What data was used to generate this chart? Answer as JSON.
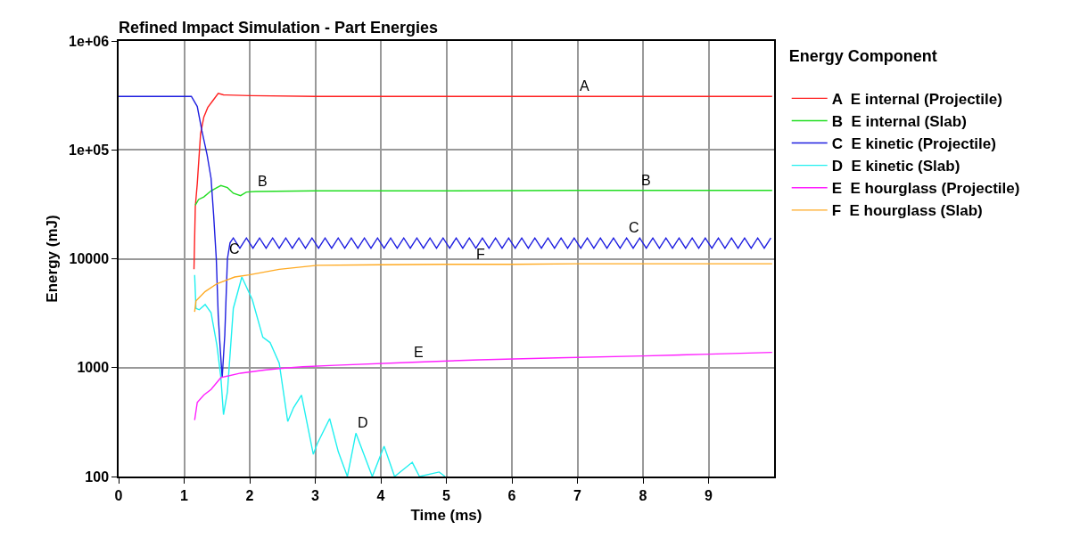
{
  "chart_data": {
    "type": "line",
    "title": "Refined Impact Simulation - Part Energies",
    "xlabel": "Time (ms)",
    "ylabel": "Energy (mJ)",
    "legend_title": "Energy Component",
    "xlim": [
      0,
      10
    ],
    "xticks": [
      0,
      1,
      2,
      3,
      4,
      5,
      6,
      7,
      8,
      9
    ],
    "ylim": [
      100,
      1000000
    ],
    "yticks": [
      100,
      1000,
      10000,
      {
        "value": 100000,
        "label": "1e+05"
      },
      {
        "value": 1000000,
        "label": "1e+06"
      }
    ],
    "log": "y",
    "grid": true,
    "legend": "right",
    "marker": "none",
    "line_style": "solid",
    "series": [
      {
        "name": "A  E internal (Projectile)",
        "color": "#ff2020",
        "x": [
          1.15,
          1.17,
          1.2,
          1.25,
          1.3,
          1.36,
          1.45,
          1.52,
          1.6,
          2,
          3,
          4,
          5,
          6,
          7,
          8,
          9,
          9.97
        ],
        "values": [
          8000,
          30000,
          49000,
          140000,
          200000,
          245000,
          290000,
          330000,
          320000,
          315000,
          310000,
          310000,
          310000,
          310000,
          310000,
          310000,
          310000,
          310000
        ]
      },
      {
        "name": "B  E internal (Slab)",
        "color": "#22dd22",
        "x": [
          1.17,
          1.22,
          1.3,
          1.41,
          1.5,
          1.56,
          1.66,
          1.75,
          1.86,
          1.95,
          2.09,
          3,
          5,
          7,
          9.97
        ],
        "values": [
          31000,
          35000,
          37000,
          42000,
          45000,
          47000,
          45000,
          40000,
          38000,
          41000,
          41500,
          42000,
          42000,
          42500,
          42500
        ]
      },
      {
        "name": "C  E kinetic (Projectile)",
        "color": "#1f1fe0",
        "x": [
          0,
          0.5,
          1,
          1.11,
          1.2,
          1.27,
          1.35,
          1.41,
          1.45,
          1.49,
          1.52,
          1.55,
          1.58,
          1.62,
          1.66,
          1.7,
          1.75,
          1.85,
          1.95,
          2.05,
          2.15,
          2.25,
          2.35,
          2.45,
          2.55,
          2.65,
          2.75,
          2.85,
          2.95,
          3.05,
          3.15,
          3.25,
          3.35,
          3.45,
          3.55,
          3.65,
          3.75,
          3.85,
          3.95,
          4.05,
          4.15,
          4.25,
          4.35,
          4.45,
          4.55,
          4.65,
          4.75,
          4.85,
          4.95,
          5.05,
          5.15,
          5.25,
          5.35,
          5.45,
          5.55,
          5.65,
          5.75,
          5.85,
          5.95,
          6.05,
          6.15,
          6.25,
          6.35,
          6.45,
          6.55,
          6.65,
          6.75,
          6.85,
          6.95,
          7.05,
          7.15,
          7.25,
          7.35,
          7.45,
          7.55,
          7.65,
          7.75,
          7.85,
          7.95,
          8.05,
          8.15,
          8.25,
          8.35,
          8.45,
          8.55,
          8.65,
          8.75,
          8.85,
          8.95,
          9.05,
          9.15,
          9.25,
          9.35,
          9.45,
          9.55,
          9.65,
          9.75,
          9.85,
          9.95
        ],
        "values": [
          310000,
          310000,
          310000,
          310000,
          250000,
          150000,
          90000,
          55000,
          25000,
          10000,
          3000,
          1500,
          810,
          2000,
          10000,
          14000,
          15500,
          12500,
          15500,
          12500,
          15500,
          12500,
          15500,
          12500,
          15500,
          12500,
          15500,
          12500,
          15500,
          12500,
          15500,
          12500,
          15500,
          12500,
          15500,
          12500,
          15500,
          12500,
          15500,
          12500,
          15500,
          12500,
          15500,
          12500,
          15500,
          12500,
          15500,
          12500,
          15500,
          12500,
          15500,
          12500,
          15500,
          12500,
          15500,
          12500,
          15500,
          12500,
          15500,
          12500,
          15500,
          12500,
          15500,
          12500,
          15500,
          12500,
          15500,
          12500,
          15500,
          12500,
          15500,
          12500,
          15500,
          12500,
          15500,
          12500,
          15500,
          12500,
          15500,
          12500,
          15500,
          12500,
          15500,
          12500,
          15500,
          12500,
          15500,
          12500,
          15500,
          12500,
          15500,
          12500,
          15500,
          12500,
          15500,
          12500,
          15500,
          12500,
          15500
        ]
      },
      {
        "name": "D  E kinetic (Slab)",
        "color": "#20f0f0",
        "x": [
          1.16,
          1.18,
          1.23,
          1.32,
          1.41,
          1.5,
          1.56,
          1.6,
          1.66,
          1.75,
          1.88,
          2.04,
          2.2,
          2.31,
          2.45,
          2.58,
          2.67,
          2.79,
          2.97,
          3.03,
          3.22,
          3.35,
          3.49,
          3.62,
          3.87,
          4.05,
          4.21,
          4.48,
          4.59,
          4.89,
          4.98
        ],
        "values": [
          7100,
          3500,
          3400,
          3800,
          3200,
          1600,
          810,
          370,
          600,
          3500,
          6800,
          4200,
          1900,
          1700,
          1100,
          320,
          430,
          560,
          160,
          200,
          340,
          170,
          100,
          250,
          100,
          190,
          100,
          135,
          100,
          110,
          100
        ]
      },
      {
        "name": "E  E hourglass (Projectile)",
        "color": "#ff20ff",
        "x": [
          1.16,
          1.2,
          1.3,
          1.41,
          1.56,
          1.86,
          2.22,
          2.45,
          2.81,
          3.3,
          4.48,
          5.5,
          6.7,
          8,
          9,
          9.97
        ],
        "values": [
          330,
          480,
          560,
          630,
          810,
          890,
          950,
          980,
          1020,
          1050,
          1120,
          1180,
          1230,
          1280,
          1330,
          1380
        ]
      },
      {
        "name": "F  E hourglass (Slab)",
        "color": "#ffaa22",
        "x": [
          1.16,
          1.18,
          1.32,
          1.5,
          1.77,
          1.99,
          2.45,
          3.03,
          4,
          5,
          6,
          7,
          8,
          9,
          9.97
        ],
        "values": [
          3250,
          4100,
          5000,
          5900,
          6800,
          7100,
          8000,
          8700,
          8800,
          8900,
          8900,
          9000,
          9000,
          9000,
          9000
        ]
      }
    ],
    "annotations": [
      {
        "text": "A",
        "x": 7,
        "y": 310000
      },
      {
        "text": "B",
        "x": 2.09,
        "y": 41500
      },
      {
        "text": "B",
        "x": 7.95,
        "y": 42500
      },
      {
        "text": "C",
        "x": 1.66,
        "y": 10000
      },
      {
        "text": "C",
        "x": 7.75,
        "y": 15500
      },
      {
        "text": "D",
        "x": 3.62,
        "y": 250
      },
      {
        "text": "E",
        "x": 4.48,
        "y": 1120
      },
      {
        "text": "F",
        "x": 5.43,
        "y": 8900
      }
    ]
  }
}
